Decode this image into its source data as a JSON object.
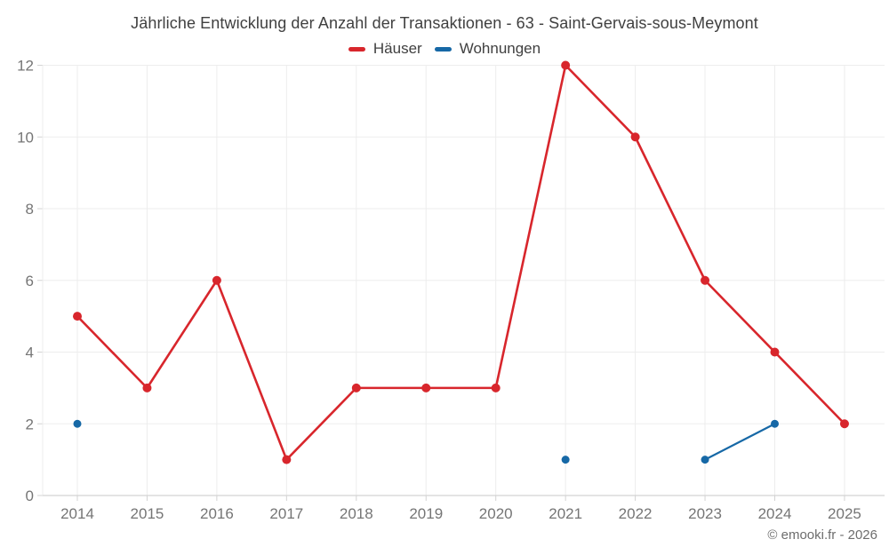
{
  "chart": {
    "title": "Jährliche Entwicklung der Anzahl der Transaktionen - 63 - Saint-Gervais-sous-Meymont"
  },
  "footer": {
    "copyright": "© emooki.fr - 2026"
  },
  "colors": {
    "hauser_red": "#d8262c",
    "wohnungen_blue": "#1668a6",
    "gridline": "#ededed",
    "axis_line": "#d3d3d3",
    "axis_label": "#757575",
    "title_text": "#404040",
    "footer_text": "#6d6d6d"
  },
  "chart_data": {
    "type": "line",
    "title": "Jährliche Entwicklung der Anzahl der Transaktionen - 63 - Saint-Gervais-sous-Meymont",
    "categories": [
      "2014",
      "2015",
      "2016",
      "2017",
      "2018",
      "2019",
      "2020",
      "2021",
      "2022",
      "2023",
      "2024",
      "2025"
    ],
    "series": [
      {
        "name": "Häuser",
        "color": "#d8262c",
        "values": [
          5,
          3,
          6,
          1,
          3,
          3,
          3,
          12,
          10,
          6,
          4,
          2
        ]
      },
      {
        "name": "Wohnungen",
        "color": "#1668a6",
        "values": [
          2,
          null,
          null,
          null,
          null,
          null,
          null,
          1,
          null,
          1,
          2,
          null
        ]
      }
    ],
    "xlabel": "",
    "ylabel": "",
    "ylim": [
      0,
      12
    ],
    "yticks": [
      0,
      2,
      4,
      6,
      8,
      10,
      12
    ],
    "grid": true,
    "legend_position": "top"
  }
}
